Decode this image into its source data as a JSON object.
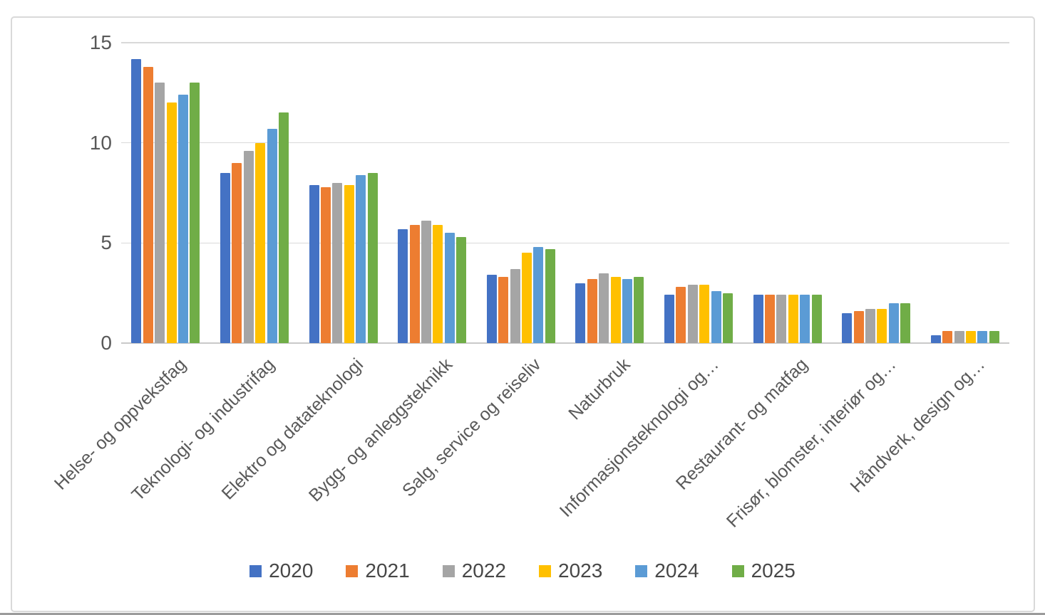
{
  "chart_data": {
    "type": "bar",
    "title": "",
    "xlabel": "",
    "ylabel": "",
    "ylim": [
      0,
      15
    ],
    "yticks": [
      0,
      5,
      10,
      15
    ],
    "grid": true,
    "legend_position": "bottom",
    "categories": [
      "Helse- og oppvekstfag",
      "Teknologi- og industrifag",
      "Elektro og datateknologi",
      "Bygg- og anleggsteknikk",
      "Salg, service og reiseliv",
      "Naturbruk",
      "Informasjonsteknologi og…",
      "Restaurant- og matfag",
      "Frisør, blomster, interiør og…",
      "Håndverk, design og…"
    ],
    "series": [
      {
        "name": "2020",
        "color": "#4472C4",
        "values": [
          14.2,
          8.5,
          7.9,
          5.7,
          3.4,
          3.0,
          2.4,
          2.4,
          1.5,
          0.4
        ]
      },
      {
        "name": "2021",
        "color": "#ED7D31",
        "values": [
          13.8,
          9.0,
          7.8,
          5.9,
          3.3,
          3.2,
          2.8,
          2.4,
          1.6,
          0.6
        ]
      },
      {
        "name": "2022",
        "color": "#A5A5A5",
        "values": [
          13.0,
          9.6,
          8.0,
          6.1,
          3.7,
          3.5,
          2.9,
          2.4,
          1.7,
          0.6
        ]
      },
      {
        "name": "2023",
        "color": "#FFC000",
        "values": [
          12.0,
          10.0,
          7.9,
          5.9,
          4.5,
          3.3,
          2.9,
          2.4,
          1.7,
          0.6
        ]
      },
      {
        "name": "2024",
        "color": "#5B9BD5",
        "values": [
          12.4,
          10.7,
          8.4,
          5.5,
          4.8,
          3.2,
          2.6,
          2.4,
          2.0,
          0.6
        ]
      },
      {
        "name": "2025",
        "color": "#70AD47",
        "values": [
          13.0,
          11.5,
          8.5,
          5.3,
          4.7,
          3.3,
          2.5,
          2.4,
          2.0,
          0.6
        ]
      }
    ]
  },
  "colors": {
    "gridline": "#d9d9d9",
    "axis_line": "#c9c9c9",
    "axis_text": "#595959",
    "legend_text": "#474747",
    "frame_border": "#d9d9d9",
    "background": "#ffffff"
  }
}
